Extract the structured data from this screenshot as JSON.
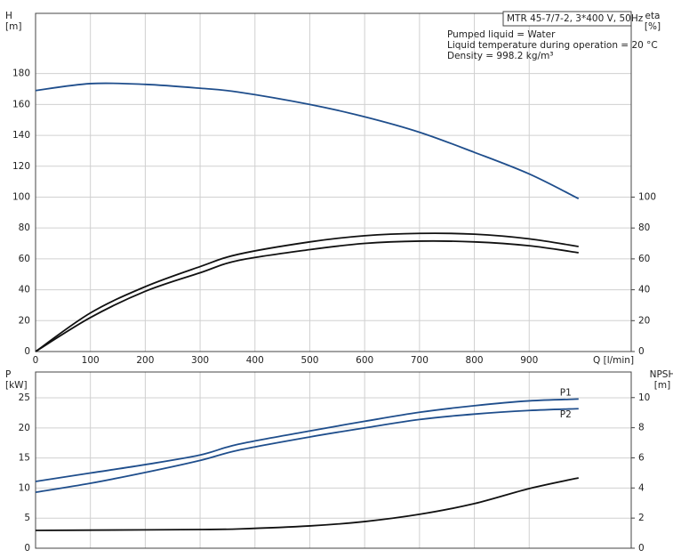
{
  "chart_data": [
    {
      "type": "line",
      "model": "MTR 45-7/7-2, 3*400 V, 50Hz",
      "annotations": [
        "Pumped liquid = Water",
        "Liquid temperature during operation = 20 °C",
        "Density = 998.2 kg/m³"
      ],
      "ylabel": [
        "H",
        "[m]"
      ],
      "y2label": [
        "eta",
        "[%]"
      ],
      "xlabel": "Q [l/min]",
      "x": [
        0,
        100,
        200,
        300,
        370,
        500,
        600,
        700,
        800,
        900,
        990
      ],
      "xlim": [
        0,
        1086
      ],
      "xticks": [
        0,
        100,
        200,
        300,
        400,
        500,
        600,
        700,
        800,
        900
      ],
      "ylim": [
        0,
        219
      ],
      "yticks": [
        0,
        20,
        40,
        60,
        80,
        100,
        120,
        140,
        160,
        180
      ],
      "y2lim": [
        0,
        219
      ],
      "y2ticks": [
        0,
        20,
        40,
        60,
        80,
        100
      ],
      "grid": true,
      "series": [
        {
          "color": "#1f4e8c",
          "values": [
            169,
            173.5,
            173,
            170.5,
            168,
            160,
            152,
            142,
            129,
            115,
            99
          ]
        },
        {
          "color": "#111111",
          "axis": "y2",
          "values": [
            0,
            25,
            42,
            55,
            63,
            71,
            75,
            76.5,
            76,
            73,
            68
          ]
        },
        {
          "color": "#111111",
          "axis": "y2",
          "values": [
            0,
            22,
            39,
            51,
            59,
            66,
            70,
            71.5,
            71,
            68.5,
            64
          ]
        }
      ]
    },
    {
      "type": "line",
      "ylabel": [
        "P",
        "[kW]"
      ],
      "y2label": [
        "NPSH",
        "[m]"
      ],
      "x": [
        0,
        100,
        200,
        300,
        370,
        500,
        600,
        700,
        800,
        900,
        990
      ],
      "xlim": [
        0,
        1086
      ],
      "ylim": [
        0,
        29.3
      ],
      "yticks": [
        0,
        5,
        10,
        15,
        20,
        25
      ],
      "y2lim": [
        0,
        11.7
      ],
      "y2ticks": [
        0,
        2,
        4,
        6,
        8,
        10
      ],
      "grid": true,
      "series": [
        {
          "name": "P1",
          "color": "#1f4e8c",
          "values": [
            11.1,
            12.5,
            13.9,
            15.5,
            17.3,
            19.5,
            21.1,
            22.6,
            23.7,
            24.5,
            24.8
          ]
        },
        {
          "name": "P2",
          "color": "#1f4e8c",
          "values": [
            9.3,
            10.8,
            12.6,
            14.6,
            16.3,
            18.5,
            20,
            21.4,
            22.3,
            22.9,
            23.2
          ]
        },
        {
          "color": "#111111",
          "axis": "y2",
          "values": [
            1.18,
            1.2,
            1.22,
            1.24,
            1.28,
            1.48,
            1.77,
            2.25,
            2.96,
            3.96,
            4.67
          ]
        }
      ]
    }
  ]
}
